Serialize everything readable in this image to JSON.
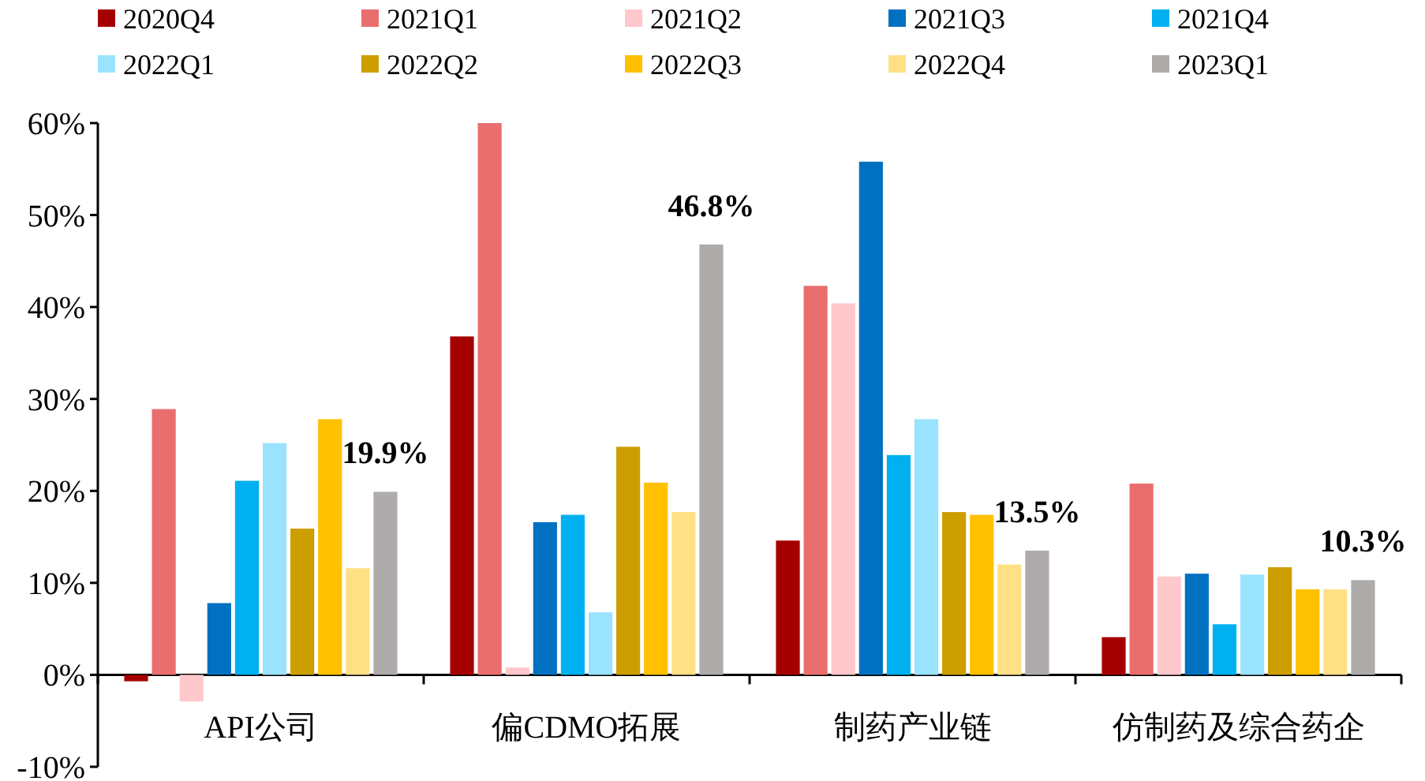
{
  "chart_data": {
    "type": "bar",
    "categories": [
      "API公司",
      "偏CDMO拓展",
      "制药产业链",
      "仿制药及综合药企"
    ],
    "series": [
      {
        "name": "2020Q4",
        "color": "#a50000",
        "values": [
          -0.7,
          36.8,
          14.6,
          4.1
        ]
      },
      {
        "name": "2021Q1",
        "color": "#eb6e6e",
        "values": [
          28.9,
          60,
          42.3,
          20.8
        ]
      },
      {
        "name": "2021Q2",
        "color": "#ffc8cc",
        "values": [
          -2.9,
          0.8,
          40.4,
          10.7
        ]
      },
      {
        "name": "2021Q3",
        "color": "#0070c0",
        "values": [
          7.8,
          16.6,
          55.8,
          11.0
        ]
      },
      {
        "name": "2021Q4",
        "color": "#00b0f0",
        "values": [
          21.1,
          17.4,
          23.9,
          5.5
        ]
      },
      {
        "name": "2022Q1",
        "color": "#99e3ff",
        "values": [
          25.2,
          6.8,
          27.8,
          10.9
        ]
      },
      {
        "name": "2022Q2",
        "color": "#cc9e00",
        "values": [
          15.9,
          24.8,
          17.7,
          11.7
        ]
      },
      {
        "name": "2022Q3",
        "color": "#ffc000",
        "values": [
          27.8,
          20.9,
          17.4,
          9.3
        ]
      },
      {
        "name": "2022Q4",
        "color": "#ffe085",
        "values": [
          11.6,
          17.7,
          12.0,
          9.3
        ]
      },
      {
        "name": "2023Q1",
        "color": "#afabab",
        "values": [
          19.9,
          46.8,
          13.5,
          10.3
        ],
        "value_labels": [
          "19.9%",
          "46.8%",
          "13.5%",
          "10.3%"
        ]
      }
    ],
    "ylim": [
      -10,
      60
    ],
    "yticks": [
      {
        "value": -10,
        "label": "-10%"
      },
      {
        "value": 0,
        "label": "0%"
      },
      {
        "value": 10,
        "label": "10%"
      },
      {
        "value": 20,
        "label": "20%"
      },
      {
        "value": 30,
        "label": "30%"
      },
      {
        "value": 40,
        "label": "40%"
      },
      {
        "value": 50,
        "label": "50%"
      },
      {
        "value": 60,
        "label": "60%"
      }
    ],
    "legend": "top",
    "grid": false
  }
}
